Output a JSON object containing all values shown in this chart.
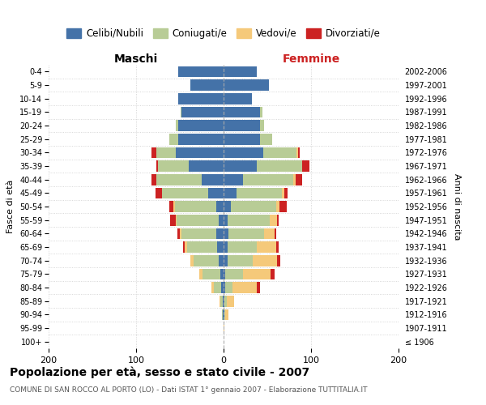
{
  "age_groups": [
    "100+",
    "95-99",
    "90-94",
    "85-89",
    "80-84",
    "75-79",
    "70-74",
    "65-69",
    "60-64",
    "55-59",
    "50-54",
    "45-49",
    "40-44",
    "35-39",
    "30-34",
    "25-29",
    "20-24",
    "15-19",
    "10-14",
    "5-9",
    "0-4"
  ],
  "birth_years": [
    "≤ 1906",
    "1907-1911",
    "1912-1916",
    "1917-1921",
    "1922-1926",
    "1927-1931",
    "1932-1936",
    "1937-1941",
    "1942-1946",
    "1947-1951",
    "1952-1956",
    "1957-1961",
    "1962-1966",
    "1967-1971",
    "1972-1976",
    "1977-1981",
    "1982-1986",
    "1987-1991",
    "1992-1996",
    "1997-2001",
    "2002-2006"
  ],
  "males_celibi": [
    0,
    0,
    1,
    1,
    3,
    4,
    6,
    7,
    8,
    6,
    8,
    18,
    25,
    40,
    55,
    52,
    52,
    48,
    52,
    38,
    52
  ],
  "males_coniugati": [
    0,
    0,
    1,
    3,
    8,
    20,
    28,
    35,
    40,
    48,
    48,
    52,
    52,
    35,
    22,
    10,
    3,
    1,
    0,
    0,
    0
  ],
  "males_vedovi": [
    0,
    0,
    0,
    1,
    3,
    4,
    4,
    2,
    2,
    1,
    1,
    0,
    0,
    0,
    0,
    0,
    0,
    0,
    0,
    0,
    0
  ],
  "males_divorziati": [
    0,
    0,
    0,
    0,
    0,
    0,
    0,
    2,
    3,
    6,
    5,
    8,
    5,
    2,
    5,
    0,
    0,
    0,
    0,
    0,
    0
  ],
  "females_nubili": [
    0,
    0,
    1,
    1,
    2,
    2,
    5,
    5,
    6,
    5,
    8,
    15,
    22,
    38,
    45,
    42,
    42,
    42,
    32,
    52,
    38
  ],
  "females_coniugate": [
    0,
    0,
    1,
    3,
    8,
    20,
    28,
    33,
    40,
    48,
    52,
    52,
    58,
    52,
    38,
    14,
    4,
    2,
    0,
    0,
    0
  ],
  "females_vedove": [
    0,
    1,
    4,
    8,
    28,
    32,
    28,
    22,
    12,
    8,
    4,
    2,
    2,
    0,
    2,
    0,
    0,
    0,
    0,
    0,
    0
  ],
  "females_divorziate": [
    0,
    0,
    0,
    0,
    4,
    4,
    4,
    3,
    2,
    2,
    8,
    4,
    8,
    8,
    2,
    0,
    0,
    0,
    0,
    0,
    0
  ],
  "colors": {
    "celibi": "#4472a8",
    "coniugati": "#b8cc96",
    "vedovi": "#f5c97a",
    "divorziati": "#cc2222"
  },
  "legend_labels": [
    "Celibi/Nubili",
    "Coniugati/e",
    "Vedovi/e",
    "Divorziati/e"
  ],
  "title": "Popolazione per età, sesso e stato civile - 2007",
  "subtitle": "COMUNE DI SAN ROCCO AL PORTO (LO) - Dati ISTAT 1° gennaio 2007 - Elaborazione TUTTITALIA.IT",
  "label_maschi": "Maschi",
  "label_femmine": "Femmine",
  "ylabel_left": "Fasce di età",
  "ylabel_right": "Anni di nascita",
  "xlim": 200,
  "background_color": "#ffffff",
  "grid_color": "#cccccc"
}
